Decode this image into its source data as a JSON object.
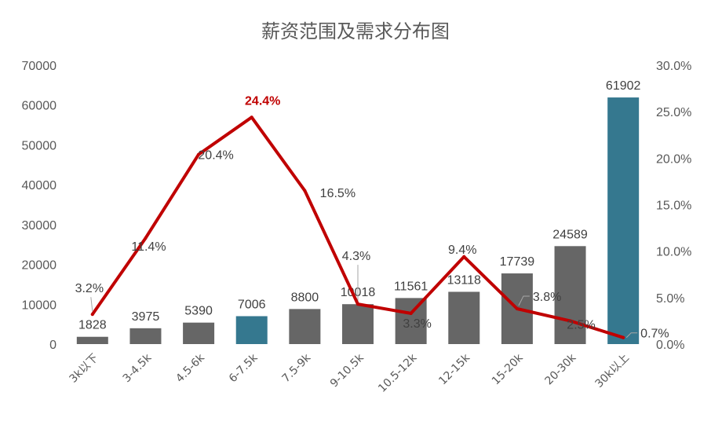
{
  "chart_data": {
    "type": "bar",
    "title": "薪资范围及需求分布图",
    "categories": [
      "3k以下",
      "3-4.5k",
      "4.5-6k",
      "6-7.5k",
      "7.5-9k",
      "9-10.5k",
      "10.5-12k",
      "12-15k",
      "15-20k",
      "20-30k",
      "30k以上"
    ],
    "series": [
      {
        "type": "bar",
        "axis": "left",
        "values": [
          1828,
          3975,
          5390,
          7006,
          8800,
          10018,
          11561,
          13118,
          17739,
          24589,
          61902
        ],
        "labels": [
          "1828",
          "3975",
          "5390",
          "7006",
          "8800",
          "10018",
          "11561",
          "13118",
          "17739",
          "24589",
          "61902"
        ],
        "color": "#666666",
        "highlight_indices": [
          3,
          10
        ],
        "highlight_color": "#35788f"
      },
      {
        "type": "line",
        "axis": "right",
        "values": [
          3.2,
          11.4,
          20.4,
          24.4,
          16.5,
          4.3,
          3.3,
          9.4,
          3.8,
          2.5,
          0.7
        ],
        "labels": [
          "3.2%",
          "11.4%",
          "20.4%",
          "24.4%",
          "16.5%",
          "4.3%",
          "3.3%",
          "9.4%",
          "3.8%",
          "2.5%",
          "0.7%"
        ],
        "color": "#c00000",
        "highlight_index": 3
      }
    ],
    "y_left": {
      "ylim": [
        0,
        70000
      ],
      "ticks": [
        "0",
        "10000",
        "20000",
        "30000",
        "40000",
        "50000",
        "60000",
        "70000"
      ]
    },
    "y_right": {
      "ylim": [
        0,
        30
      ],
      "ticks": [
        "0.0%",
        "5.0%",
        "10.0%",
        "15.0%",
        "20.0%",
        "25.0%",
        "30.0%"
      ]
    },
    "grid": false,
    "legend": "none"
  }
}
